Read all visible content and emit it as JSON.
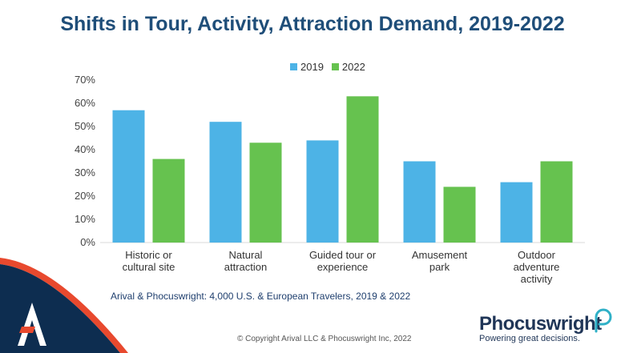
{
  "title": "Shifts in Tour, Activity, Attraction Demand, 2019-2022",
  "source_note": "Arival & Phocuswright: 4,000 U.S. & European Travelers, 2019 & 2022",
  "copyright": "© Copyright Arival LLC & Phocuswright Inc,  2022",
  "brand": {
    "name": "Phocuswright",
    "tagline": "Powering great decisions."
  },
  "colors": {
    "title": "#1f4e79",
    "series_2019": "#4db3e6",
    "series_2022": "#66c24f",
    "corner_navy": "#0d2d50",
    "corner_accent": "#e8492e"
  },
  "icons": {
    "corner_logo": "arival-logo-icon",
    "brand_mark": "phocuswright-mark-icon"
  },
  "chart_data": {
    "type": "bar",
    "categories": [
      [
        "Historic or",
        "cultural site"
      ],
      [
        "Natural",
        "attraction"
      ],
      [
        "Guided tour or",
        "experience"
      ],
      [
        "Amusement",
        "park"
      ],
      [
        "Outdoor",
        "adventure",
        "activity"
      ]
    ],
    "series": [
      {
        "name": "2019",
        "values": [
          57,
          52,
          44,
          35,
          26
        ]
      },
      {
        "name": "2022",
        "values": [
          36,
          43,
          63,
          24,
          35
        ]
      }
    ],
    "ylim": [
      0,
      70
    ],
    "yticks": [
      "0%",
      "10%",
      "20%",
      "30%",
      "40%",
      "50%",
      "60%",
      "70%"
    ],
    "grid": false,
    "legend_position": "top-center"
  }
}
